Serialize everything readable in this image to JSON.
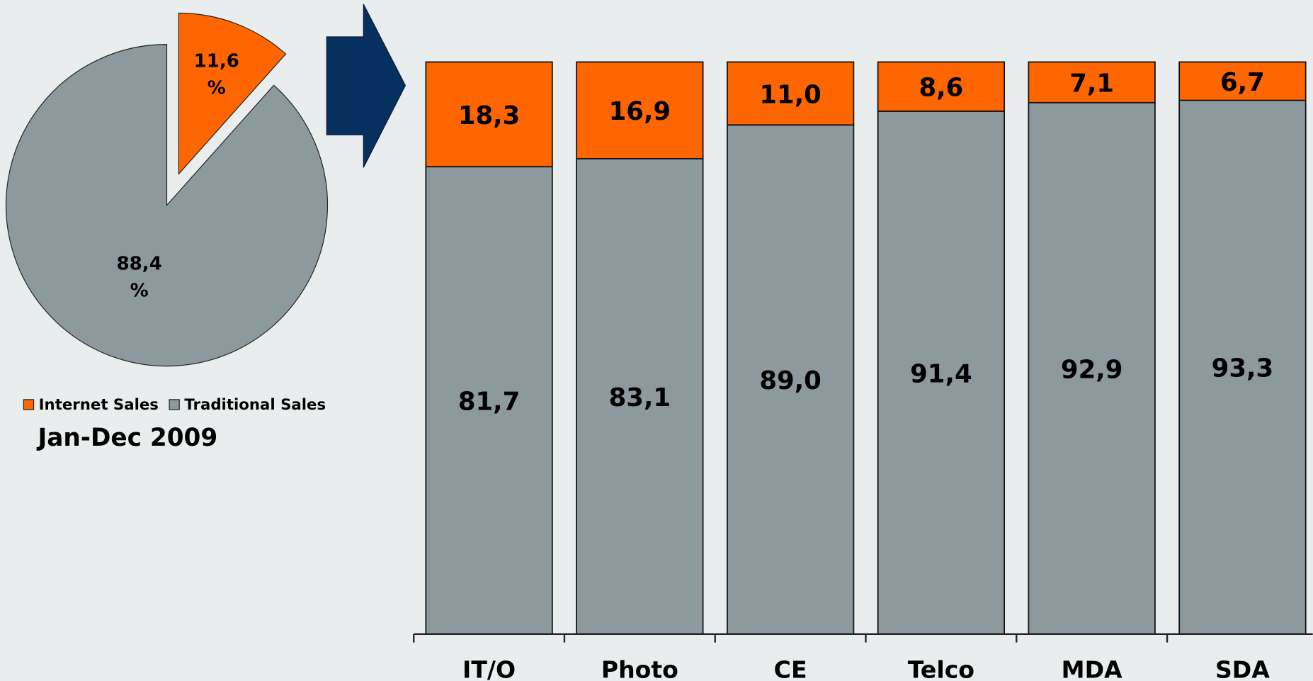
{
  "chart_data": [
    {
      "type": "pie",
      "subtitle": "Jan-Dec 2009",
      "categories": [
        "Internet Sales",
        "Traditional Sales"
      ],
      "values": [
        11.6,
        88.4
      ],
      "value_labels": [
        "11,6 %",
        "88,4 %"
      ],
      "colors": [
        "#ff6600",
        "#8c9a9e"
      ],
      "legend": "bottom"
    },
    {
      "type": "bar",
      "stacked": true,
      "categories": [
        "IT/O",
        "Photo",
        "CE",
        "Telco",
        "MDA",
        "SDA"
      ],
      "series": [
        {
          "name": "Traditional Sales",
          "color": "#8c9a9e",
          "values": [
            81.7,
            83.1,
            89.0,
            91.4,
            92.9,
            93.3
          ],
          "value_labels": [
            "81,7",
            "83,1",
            "89,0",
            "91,4",
            "92,9",
            "93,3"
          ]
        },
        {
          "name": "Internet Sales",
          "color": "#ff6600",
          "values": [
            18.3,
            16.9,
            11.0,
            8.6,
            7.1,
            6.7
          ],
          "value_labels": [
            "18,3",
            "16,9",
            "11,0",
            "8,6",
            "7,1",
            "6,7"
          ]
        }
      ],
      "ylim": [
        0,
        100
      ]
    }
  ]
}
